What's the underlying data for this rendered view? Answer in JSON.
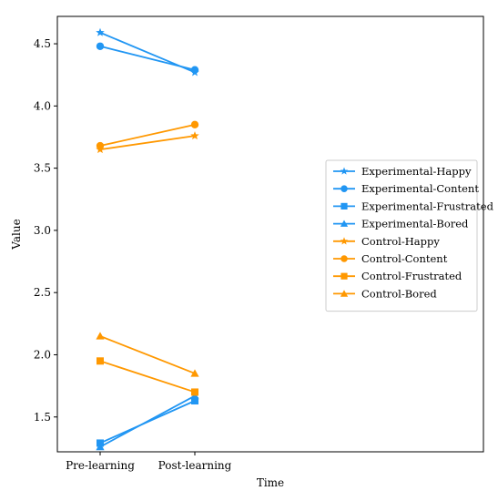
{
  "chart_data": {
    "type": "line",
    "title": "",
    "xlabel": "Time",
    "ylabel": "Value",
    "categories": [
      "Pre-learning",
      "Post-learning"
    ],
    "ylim": [
      1.22,
      4.72
    ],
    "yticks": [
      1.5,
      2.0,
      2.5,
      3.0,
      3.5,
      4.0,
      4.5
    ],
    "ytick_labels": [
      "1.5",
      "2.0",
      "2.5",
      "3.0",
      "3.5",
      "4.0",
      "4.5"
    ],
    "grid": false,
    "legend_position": "center-right",
    "series": [
      {
        "name": "Experimental-Happy",
        "values": [
          4.59,
          4.27
        ],
        "color": "#2196f3",
        "marker": "star"
      },
      {
        "name": "Experimental-Content",
        "values": [
          4.48,
          4.29
        ],
        "color": "#2196f3",
        "marker": "circle"
      },
      {
        "name": "Experimental-Frustrated",
        "values": [
          1.29,
          1.63
        ],
        "color": "#2196f3",
        "marker": "square"
      },
      {
        "name": "Experimental-Bored",
        "values": [
          1.26,
          1.67
        ],
        "color": "#2196f3",
        "marker": "triangle"
      },
      {
        "name": "Control-Happy",
        "values": [
          3.65,
          3.76
        ],
        "color": "#ff9800",
        "marker": "star"
      },
      {
        "name": "Control-Content",
        "values": [
          3.68,
          3.85
        ],
        "color": "#ff9800",
        "marker": "circle"
      },
      {
        "name": "Control-Frustrated",
        "values": [
          1.95,
          1.7
        ],
        "color": "#ff9800",
        "marker": "square"
      },
      {
        "name": "Control-Bored",
        "values": [
          2.15,
          1.85
        ],
        "color": "#ff9800",
        "marker": "triangle"
      }
    ]
  }
}
